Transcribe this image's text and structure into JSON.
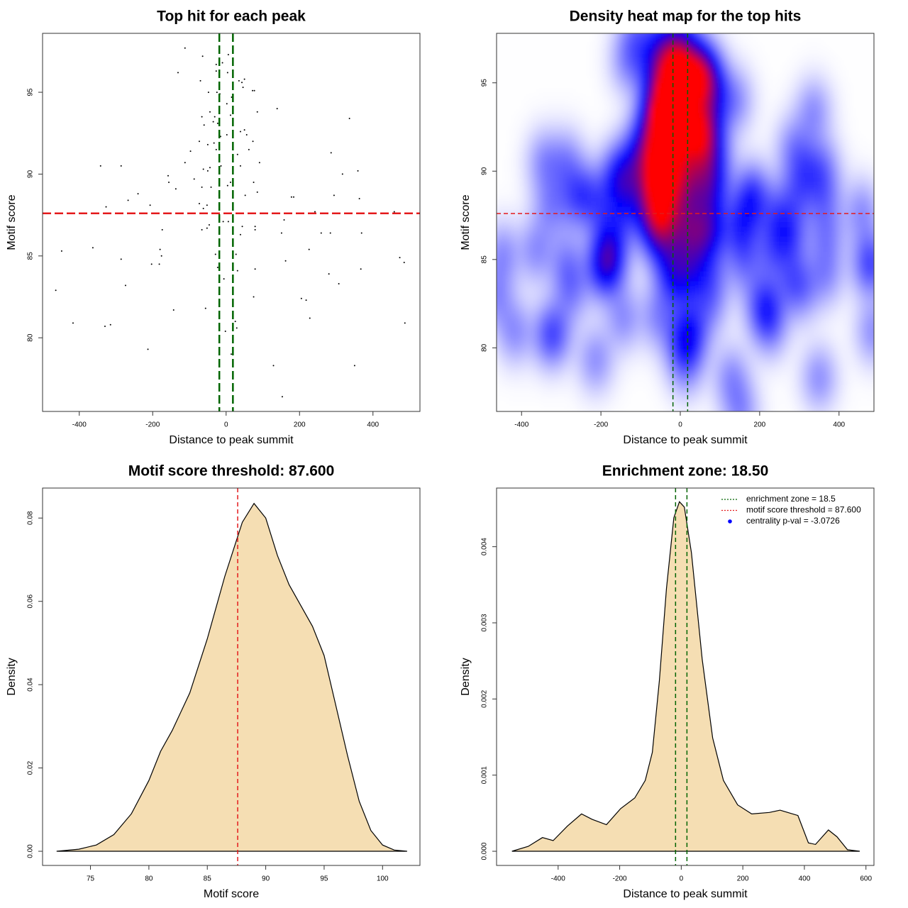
{
  "chart_data": [
    {
      "type": "scatter",
      "title": "Top hit for each peak",
      "x_label": "Distance to peak summit",
      "y_label": "Motif score",
      "x": [
        -112,
        -64,
        -131,
        6,
        -27,
        -10,
        -70,
        -27,
        4,
        35,
        43,
        50,
        72,
        46,
        77,
        -25,
        15,
        2,
        -48,
        -17,
        -44,
        -66,
        -31,
        12,
        139,
        85,
        336,
        -35,
        -23,
        -60,
        50,
        39,
        2,
        56,
        -15,
        -73,
        -33,
        -50,
        73,
        62,
        31,
        -97,
        -27,
        91,
        39,
        -14,
        -44,
        -62,
        -112,
        -50,
        -158,
        -156,
        -137,
        -87,
        12,
        286,
        317,
        359,
        -342,
        -286,
        75,
        4,
        -66,
        -41,
        -240,
        -267,
        -207,
        -327,
        -73,
        -52,
        -62,
        -19,
        52,
        85,
        178,
        184,
        294,
        363,
        458,
        242,
        -128,
        158,
        -46,
        -52,
        -66,
        -8,
        6,
        79,
        44,
        79,
        39,
        151,
        259,
        284,
        369,
        -174,
        -363,
        -286,
        -448,
        -180,
        -176,
        -182,
        -203,
        -29,
        27,
        -23,
        162,
        226,
        79,
        31,
        367,
        473,
        485,
        280,
        -274,
        -464,
        -6,
        75,
        205,
        218,
        307,
        -143,
        -56,
        228,
        -417,
        -330,
        -315,
        25,
        29,
        487,
        -2,
        -213,
        14,
        129,
        350,
        153
      ],
      "y": [
        97.7,
        97.2,
        96.2,
        97.3,
        96.7,
        96.8,
        95.7,
        96.3,
        96.2,
        95.7,
        95.6,
        95.8,
        95.1,
        95.3,
        95.1,
        95.0,
        94.7,
        94.3,
        95.0,
        94.9,
        93.8,
        93.5,
        93.5,
        93.6,
        94.0,
        93.8,
        93.4,
        93.2,
        93.1,
        93.0,
        92.7,
        92.6,
        92.4,
        92.4,
        92.3,
        92.0,
        91.9,
        91.8,
        92.0,
        91.5,
        91.2,
        91.4,
        91.5,
        90.7,
        90.5,
        90.5,
        90.4,
        90.3,
        90.7,
        90.2,
        89.9,
        89.5,
        89.1,
        89.7,
        89.5,
        91.3,
        90.0,
        90.2,
        90.5,
        90.5,
        89.5,
        89.3,
        89.2,
        89.2,
        88.8,
        88.4,
        88.1,
        88.0,
        88.2,
        88.1,
        87.9,
        88.7,
        88.7,
        88.9,
        88.6,
        88.6,
        88.7,
        88.5,
        87.7,
        87.7,
        87.6,
        87.2,
        86.9,
        86.7,
        86.6,
        87.1,
        87.1,
        86.8,
        86.8,
        86.6,
        86.3,
        86.4,
        86.4,
        86.4,
        86.4,
        86.6,
        85.5,
        84.8,
        85.3,
        85.4,
        85.0,
        84.5,
        84.5,
        85.1,
        85.1,
        84.3,
        84.7,
        85.4,
        84.2,
        84.1,
        84.2,
        84.9,
        84.6,
        83.9,
        83.2,
        82.9,
        83.6,
        82.5,
        82.4,
        82.3,
        83.3,
        81.7,
        81.8,
        81.2,
        80.9,
        80.7,
        80.8,
        81.0,
        80.6,
        80.9,
        80.4,
        79.3,
        79.0,
        78.3,
        78.3,
        76.4
      ],
      "color": "#000000",
      "xlim": [
        -500,
        528
      ],
      "ylim": [
        75.5,
        98.6
      ],
      "xticks": [
        -400,
        -200,
        0,
        200,
        400
      ],
      "yticks": [
        80,
        85,
        90,
        95
      ],
      "hlines": [
        {
          "value": 87.6,
          "color": "#e41a1c"
        }
      ],
      "vlines": [
        {
          "value": -18.5,
          "color": "#006400"
        },
        {
          "value": 18.5,
          "color": "#006400"
        }
      ]
    },
    {
      "type": "heatmap",
      "title": "Density heat map for the top hits",
      "x_label": "Distance to peak summit",
      "y_label": "Motif score",
      "xlim": [
        -463,
        488
      ],
      "ylim": [
        76.4,
        97.8
      ],
      "xticks": [
        -400,
        -200,
        0,
        200,
        400
      ],
      "yticks": [
        80,
        85,
        90,
        95
      ],
      "hlines": [
        {
          "value": 87.6,
          "color": "#e41a1c"
        }
      ],
      "vlines": [
        {
          "value": -18.5,
          "color": "#006400"
        },
        {
          "value": 18.5,
          "color": "#006400"
        }
      ]
    },
    {
      "type": "density",
      "title": "Motif score threshold: 87.600",
      "x_label": "Motif score",
      "y_label": "Density",
      "x": [
        72.1,
        74,
        75.5,
        77,
        78.5,
        80,
        81,
        82,
        83.5,
        85,
        86.5,
        88,
        89,
        90,
        91,
        92,
        93,
        94,
        95,
        96,
        97,
        98,
        99,
        100,
        101,
        102.1
      ],
      "y": [
        0,
        0.0005,
        0.0015,
        0.004,
        0.009,
        0.017,
        0.024,
        0.029,
        0.038,
        0.051,
        0.066,
        0.079,
        0.0835,
        0.08,
        0.071,
        0.064,
        0.059,
        0.054,
        0.047,
        0.035,
        0.023,
        0.012,
        0.005,
        0.0015,
        0.0003,
        0
      ],
      "color": "#f5deb3",
      "xlim": [
        70.9,
        103.2
      ],
      "ylim": [
        -0.0034,
        0.0872
      ],
      "xticks": [
        75,
        80,
        85,
        90,
        95,
        100
      ],
      "yticks": [
        {
          "value": 0,
          "label": "0.00"
        },
        0.02,
        0.04,
        0.06,
        0.08
      ],
      "vlines": [
        {
          "value": 87.6,
          "color": "#e41a1c"
        }
      ]
    },
    {
      "type": "density",
      "title": "Enrichment zone: 18.50",
      "x_label": "Distance to peak summit",
      "y_label": "Density",
      "x": [
        -550,
        -497,
        -451,
        -416,
        -370,
        -324,
        -290,
        -243,
        -197,
        -151,
        -117,
        -94,
        -71,
        -48,
        -24,
        -6,
        10,
        33,
        68,
        102,
        137,
        183,
        229,
        286,
        321,
        379,
        413,
        436,
        478,
        506,
        540,
        580
      ],
      "y": [
        0,
        6.5e-05,
        0.00018,
        0.00014,
        0.00033,
        0.00049,
        0.00042,
        0.00035,
        0.00056,
        0.0007,
        0.00093,
        0.0013,
        0.00224,
        0.00345,
        0.00438,
        0.00459,
        0.00452,
        0.00392,
        0.00252,
        0.00149,
        0.00093,
        0.00061,
        0.00049,
        0.00051,
        0.00054,
        0.00047,
        0.00011,
        9e-05,
        0.00028,
        0.00019,
        2e-05,
        0
      ],
      "color": "#f5deb3",
      "xlim": [
        -600,
        626
      ],
      "ylim": [
        -0.000186,
        0.00477
      ],
      "xticks": [
        -400,
        -200,
        0,
        200,
        400,
        600
      ],
      "yticks": [
        {
          "value": 0,
          "label": "0.000"
        },
        0.001,
        0.002,
        0.003,
        0.004
      ],
      "vlines": [
        {
          "value": -18.5,
          "color": "#006400"
        },
        {
          "value": 18.5,
          "color": "#006400"
        }
      ],
      "legend_position": "topright",
      "legend": [
        {
          "label": "enrichment zone = 18.5",
          "color": "#006400",
          "style": "dotted"
        },
        {
          "label": "motif score threshold = 87.600",
          "color": "#e41a1c",
          "style": "dotted"
        },
        {
          "label": "centrality p-val = -3.0726",
          "color": "#0000ff",
          "style": "point"
        }
      ]
    }
  ]
}
